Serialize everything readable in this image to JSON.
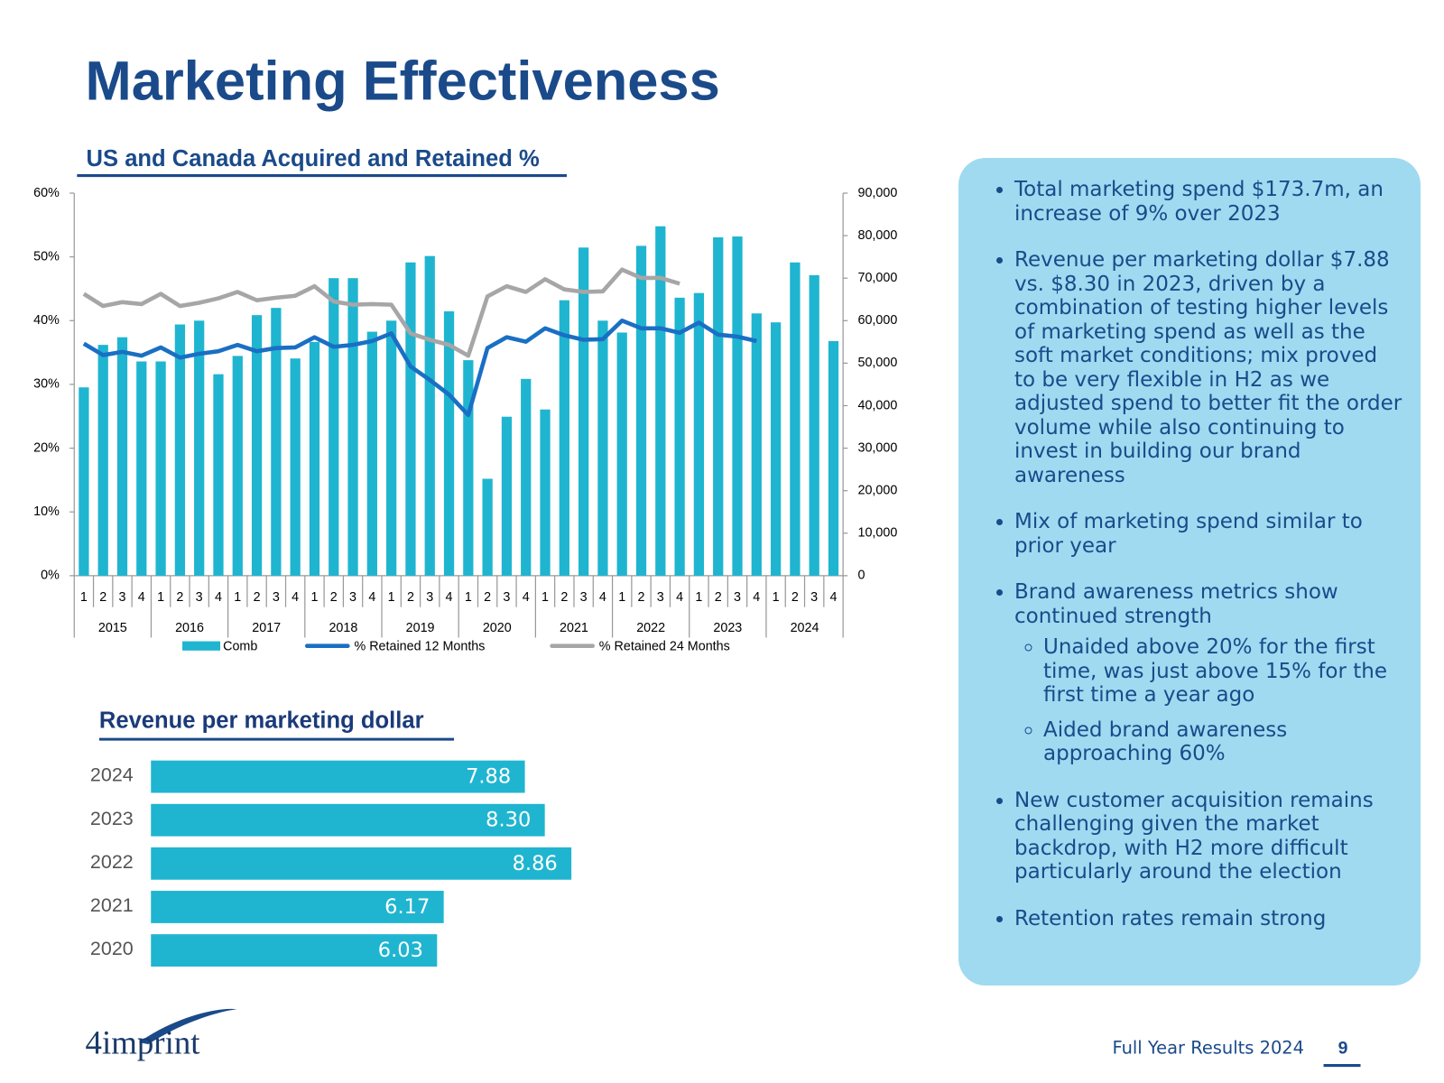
{
  "title": "Marketing Effectiveness",
  "chart_data": [
    {
      "type": "combo",
      "title": "US and Canada Acquired and Retained %",
      "categories": [
        "1",
        "2",
        "3",
        "4",
        "1",
        "2",
        "3",
        "4",
        "1",
        "2",
        "3",
        "4",
        "1",
        "2",
        "3",
        "4",
        "1",
        "2",
        "3",
        "4",
        "1",
        "2",
        "3",
        "4",
        "1",
        "2",
        "3",
        "4",
        "1",
        "2",
        "3",
        "4",
        "1",
        "2",
        "3",
        "4",
        "1",
        "2",
        "3",
        "4"
      ],
      "years": [
        "2015",
        "2016",
        "2017",
        "2018",
        "2019",
        "2020",
        "2021",
        "2022",
        "2023",
        "2024"
      ],
      "series": [
        {
          "name": "Comb",
          "type": "bar",
          "axis": "y2",
          "color": "#1fb5d0",
          "values": [
            44300,
            54300,
            56100,
            50400,
            50400,
            59100,
            60000,
            47400,
            51700,
            61300,
            63000,
            51100,
            55000,
            70000,
            70000,
            57400,
            60000,
            73700,
            75200,
            62200,
            50700,
            22800,
            37400,
            46300,
            39100,
            64800,
            77200,
            60000,
            57200,
            77600,
            82200,
            65400,
            66500,
            79600,
            79800,
            61700,
            59600,
            73700,
            70700,
            55200
          ]
        },
        {
          "name": "% Retained 12 Months",
          "type": "line",
          "color": "#1a6fc4",
          "values": [
            36.4,
            34.6,
            35.1,
            34.5,
            35.8,
            34.2,
            34.8,
            35.2,
            36.2,
            35.2,
            35.7,
            35.8,
            37.4,
            35.9,
            36.2,
            36.8,
            38.0,
            32.8,
            30.7,
            28.4,
            25.2,
            35.7,
            37.4,
            36.7,
            38.8,
            37.7,
            37.0,
            37.1,
            40.0,
            38.8,
            38.8,
            38.1,
            39.7,
            37.8,
            37.5,
            36.8,
            null,
            null,
            null,
            null
          ]
        },
        {
          "name": "% Retained 24 Months",
          "type": "line",
          "color": "#a6a6a6",
          "values": [
            44.2,
            42.3,
            42.9,
            42.6,
            44.2,
            42.3,
            42.8,
            43.5,
            44.5,
            43.2,
            43.6,
            43.9,
            45.4,
            43.0,
            42.5,
            42.6,
            42.5,
            38.0,
            37.0,
            36.2,
            34.5,
            43.8,
            45.4,
            44.5,
            46.5,
            44.9,
            44.5,
            44.6,
            48.0,
            46.7,
            46.7,
            45.8,
            null,
            null,
            null,
            null,
            null,
            null,
            null,
            null
          ]
        }
      ],
      "ylim": [
        0,
        60
      ],
      "yticks": [
        {
          "value": 0,
          "label": "0%"
        },
        {
          "value": 10,
          "label": "10%"
        },
        {
          "value": 20,
          "label": "20%"
        },
        {
          "value": 30,
          "label": "30%"
        },
        {
          "value": 40,
          "label": "40%"
        },
        {
          "value": 50,
          "label": "50%"
        },
        {
          "value": 60,
          "label": "60%"
        }
      ],
      "y2lim": [
        0,
        90000
      ],
      "y2ticks": [
        0,
        {
          "value": 10000,
          "label": "10,000"
        },
        {
          "value": 20000,
          "label": "20,000"
        },
        {
          "value": 30000,
          "label": "30,000"
        },
        {
          "value": 40000,
          "label": "40,000"
        },
        {
          "value": 50000,
          "label": "50,000"
        },
        {
          "value": 60000,
          "label": "60,000"
        },
        {
          "value": 70000,
          "label": "70,000"
        },
        {
          "value": 80000,
          "label": "80,000"
        },
        {
          "value": 90000,
          "label": "90,000"
        }
      ],
      "grid": false,
      "legend": "bottom"
    },
    {
      "type": "hbar",
      "title": "Revenue per marketing dollar",
      "color": "#1fb5d0",
      "categories": [
        "2024",
        "2023",
        "2022",
        "2021",
        "2020"
      ],
      "values": [
        7.88,
        8.3,
        8.86,
        6.17,
        6.03
      ],
      "value_labels": [
        "7.88",
        "8.30",
        "8.86",
        "6.17",
        "6.03"
      ]
    }
  ],
  "panel": {
    "bullets": [
      {
        "text": "Total marketing spend $173.7m, an increase of 9% over 2023"
      },
      {
        "text": "Revenue per marketing dollar $7.88 vs. $8.30 in 2023, driven by a combination of testing higher levels of marketing spend as well as the soft market conditions; mix proved to be very flexible in H2 as we adjusted spend to better fit the order volume while also continuing to invest in building our brand awareness"
      },
      {
        "text": "Mix of marketing spend similar to prior year"
      },
      {
        "text": "Brand awareness metrics show continued strength",
        "sub": [
          "Unaided above 20% for the first time, was just above 15% for the first time a year ago",
          "Aided brand awareness approaching 60%"
        ]
      },
      {
        "text": "New customer acquisition remains challenging given the market backdrop, with H2 more difficult particularly around the election"
      },
      {
        "text": "Retention rates remain strong"
      }
    ]
  },
  "footer": {
    "text": "Full Year Results 2024",
    "page": 9
  },
  "logo": "4imprint"
}
